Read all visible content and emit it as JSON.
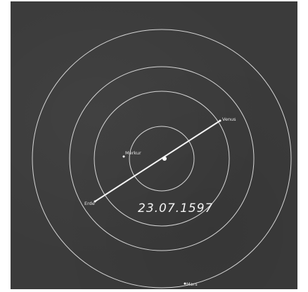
{
  "diagram": {
    "background_color": "#3b3b3b",
    "line_color": "#d9d9d9",
    "date": "23.07.1597",
    "planets": {
      "merkur": "Merkur",
      "venus": "Venus",
      "erde": "Erde",
      "mars": "Mars"
    }
  }
}
